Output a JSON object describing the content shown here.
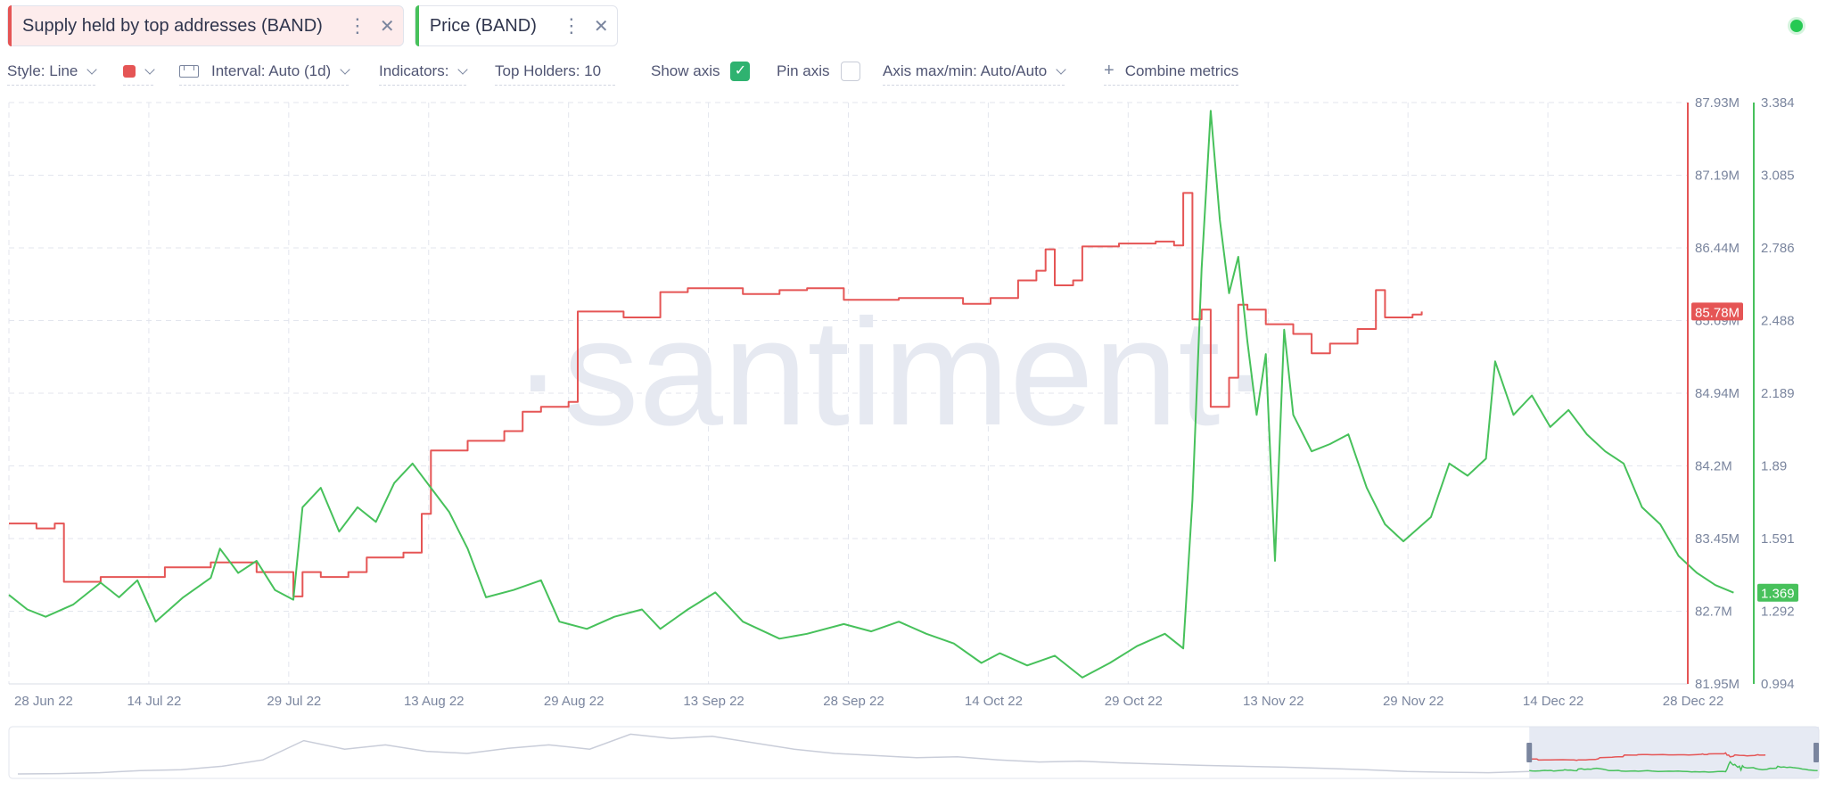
{
  "tabs": [
    {
      "label": "Supply held by top addresses (BAND)",
      "color": "#e55555"
    },
    {
      "label": "Price (BAND)",
      "color": "#47c15b"
    }
  ],
  "toolbar": {
    "style_label": "Style: Line",
    "color_swatch": "#e55555",
    "interval_label": "Interval: Auto (1d)",
    "indicators_label": "Indicators:",
    "top_holders_label": "Top Holders: 10",
    "show_axis_label": "Show axis",
    "show_axis_checked": true,
    "pin_axis_label": "Pin axis",
    "pin_axis_checked": false,
    "axis_minmax_label": "Axis max/min: Auto/Auto",
    "combine_label": "Combine metrics"
  },
  "status": {
    "color": "#26c953",
    "icon": "status-online-dot-icon"
  },
  "watermark": "·santiment·",
  "chart_data": {
    "type": "line",
    "x_ticks": [
      "28 Jun 22",
      "14 Jul 22",
      "29 Jul 22",
      "13 Aug 22",
      "29 Aug 22",
      "13 Sep 22",
      "28 Sep 22",
      "14 Oct 22",
      "29 Oct 22",
      "13 Nov 22",
      "29 Nov 22",
      "14 Dec 22",
      "28 Dec 22"
    ],
    "x_range": [
      "2022-06-28",
      "2022-12-28"
    ],
    "grid": true,
    "series": [
      {
        "name": "Supply held by top addresses (BAND)",
        "color": "#e55555",
        "axis": "left",
        "unit": "M",
        "ylim": [
          81.95,
          87.93
        ],
        "y_ticks": [
          "87.93M",
          "87.19M",
          "86.44M",
          "85.69M",
          "84.94M",
          "84.2M",
          "83.45M",
          "82.7M",
          "81.95M"
        ],
        "last_value_label": "85.78M",
        "points": [
          [
            "2022-06-28",
            83.6
          ],
          [
            "2022-07-01",
            83.55
          ],
          [
            "2022-07-03",
            83.6
          ],
          [
            "2022-07-04",
            83.0
          ],
          [
            "2022-07-08",
            83.05
          ],
          [
            "2022-07-12",
            83.05
          ],
          [
            "2022-07-15",
            83.15
          ],
          [
            "2022-07-20",
            83.2
          ],
          [
            "2022-07-25",
            83.1
          ],
          [
            "2022-07-27",
            83.1
          ],
          [
            "2022-07-29",
            82.85
          ],
          [
            "2022-07-30",
            83.1
          ],
          [
            "2022-08-01",
            83.05
          ],
          [
            "2022-08-04",
            83.1
          ],
          [
            "2022-08-06",
            83.25
          ],
          [
            "2022-08-10",
            83.3
          ],
          [
            "2022-08-12",
            83.7
          ],
          [
            "2022-08-13",
            84.35
          ],
          [
            "2022-08-17",
            84.45
          ],
          [
            "2022-08-21",
            84.55
          ],
          [
            "2022-08-23",
            84.75
          ],
          [
            "2022-08-25",
            84.8
          ],
          [
            "2022-08-28",
            84.85
          ],
          [
            "2022-08-29",
            85.78
          ],
          [
            "2022-09-03",
            85.72
          ],
          [
            "2022-09-06",
            85.72
          ],
          [
            "2022-09-07",
            85.98
          ],
          [
            "2022-09-10",
            86.02
          ],
          [
            "2022-09-13",
            86.02
          ],
          [
            "2022-09-16",
            85.96
          ],
          [
            "2022-09-20",
            86.0
          ],
          [
            "2022-09-23",
            86.02
          ],
          [
            "2022-09-27",
            85.9
          ],
          [
            "2022-09-30",
            85.9
          ],
          [
            "2022-10-03",
            85.92
          ],
          [
            "2022-10-07",
            85.92
          ],
          [
            "2022-10-10",
            85.86
          ],
          [
            "2022-10-13",
            85.92
          ],
          [
            "2022-10-16",
            86.1
          ],
          [
            "2022-10-18",
            86.2
          ],
          [
            "2022-10-19",
            86.42
          ],
          [
            "2022-10-20",
            86.05
          ],
          [
            "2022-10-22",
            86.1
          ],
          [
            "2022-10-23",
            86.45
          ],
          [
            "2022-10-27",
            86.48
          ],
          [
            "2022-10-31",
            86.5
          ],
          [
            "2022-11-02",
            86.46
          ],
          [
            "2022-11-03",
            87.0
          ],
          [
            "2022-11-04",
            85.7
          ],
          [
            "2022-11-05",
            85.8
          ],
          [
            "2022-11-06",
            84.8
          ],
          [
            "2022-11-08",
            85.1
          ],
          [
            "2022-11-09",
            85.85
          ],
          [
            "2022-11-10",
            85.8
          ],
          [
            "2022-11-12",
            85.65
          ],
          [
            "2022-11-15",
            85.55
          ],
          [
            "2022-11-17",
            85.35
          ],
          [
            "2022-11-19",
            85.45
          ],
          [
            "2022-11-22",
            85.6
          ],
          [
            "2022-11-24",
            86.0
          ],
          [
            "2022-11-25",
            85.72
          ],
          [
            "2022-11-28",
            85.75
          ],
          [
            "2022-11-29",
            85.78
          ]
        ]
      },
      {
        "name": "Price (BAND)",
        "color": "#47c15b",
        "axis": "right",
        "unit": "USD",
        "ylim": [
          0.994,
          3.384
        ],
        "y_ticks": [
          "3.384",
          "3.085",
          "2.786",
          "2.488",
          "2.189",
          "1.89",
          "1.591",
          "1.292",
          "0.994"
        ],
        "last_value_label": "1.369",
        "points": [
          [
            "2022-06-28",
            1.36
          ],
          [
            "2022-06-30",
            1.3
          ],
          [
            "2022-07-02",
            1.27
          ],
          [
            "2022-07-05",
            1.32
          ],
          [
            "2022-07-08",
            1.41
          ],
          [
            "2022-07-10",
            1.35
          ],
          [
            "2022-07-12",
            1.42
          ],
          [
            "2022-07-14",
            1.25
          ],
          [
            "2022-07-17",
            1.35
          ],
          [
            "2022-07-20",
            1.43
          ],
          [
            "2022-07-21",
            1.55
          ],
          [
            "2022-07-23",
            1.45
          ],
          [
            "2022-07-25",
            1.5
          ],
          [
            "2022-07-27",
            1.38
          ],
          [
            "2022-07-29",
            1.34
          ],
          [
            "2022-07-30",
            1.72
          ],
          [
            "2022-08-01",
            1.8
          ],
          [
            "2022-08-03",
            1.62
          ],
          [
            "2022-08-05",
            1.72
          ],
          [
            "2022-08-07",
            1.66
          ],
          [
            "2022-08-09",
            1.82
          ],
          [
            "2022-08-11",
            1.9
          ],
          [
            "2022-08-13",
            1.8
          ],
          [
            "2022-08-15",
            1.7
          ],
          [
            "2022-08-17",
            1.55
          ],
          [
            "2022-08-19",
            1.35
          ],
          [
            "2022-08-22",
            1.38
          ],
          [
            "2022-08-25",
            1.42
          ],
          [
            "2022-08-27",
            1.25
          ],
          [
            "2022-08-30",
            1.22
          ],
          [
            "2022-09-02",
            1.27
          ],
          [
            "2022-09-05",
            1.3
          ],
          [
            "2022-09-07",
            1.22
          ],
          [
            "2022-09-10",
            1.3
          ],
          [
            "2022-09-13",
            1.37
          ],
          [
            "2022-09-16",
            1.25
          ],
          [
            "2022-09-20",
            1.18
          ],
          [
            "2022-09-23",
            1.2
          ],
          [
            "2022-09-27",
            1.24
          ],
          [
            "2022-09-30",
            1.21
          ],
          [
            "2022-10-03",
            1.25
          ],
          [
            "2022-10-06",
            1.2
          ],
          [
            "2022-10-09",
            1.16
          ],
          [
            "2022-10-12",
            1.08
          ],
          [
            "2022-10-14",
            1.12
          ],
          [
            "2022-10-17",
            1.07
          ],
          [
            "2022-10-20",
            1.11
          ],
          [
            "2022-10-23",
            1.02
          ],
          [
            "2022-10-26",
            1.08
          ],
          [
            "2022-10-29",
            1.15
          ],
          [
            "2022-11-01",
            1.2
          ],
          [
            "2022-11-03",
            1.14
          ],
          [
            "2022-11-04",
            1.75
          ],
          [
            "2022-11-05",
            2.7
          ],
          [
            "2022-11-06",
            3.35
          ],
          [
            "2022-11-07",
            2.9
          ],
          [
            "2022-11-08",
            2.6
          ],
          [
            "2022-11-09",
            2.75
          ],
          [
            "2022-11-10",
            2.4
          ],
          [
            "2022-11-11",
            2.1
          ],
          [
            "2022-11-12",
            2.35
          ],
          [
            "2022-11-13",
            1.5
          ],
          [
            "2022-11-14",
            2.45
          ],
          [
            "2022-11-15",
            2.1
          ],
          [
            "2022-11-17",
            1.95
          ],
          [
            "2022-11-19",
            1.98
          ],
          [
            "2022-11-21",
            2.02
          ],
          [
            "2022-11-23",
            1.8
          ],
          [
            "2022-11-25",
            1.65
          ],
          [
            "2022-11-27",
            1.58
          ],
          [
            "2022-11-30",
            1.68
          ],
          [
            "2022-12-02",
            1.9
          ],
          [
            "2022-12-04",
            1.85
          ],
          [
            "2022-12-06",
            1.92
          ],
          [
            "2022-12-07",
            2.32
          ],
          [
            "2022-12-09",
            2.1
          ],
          [
            "2022-12-11",
            2.18
          ],
          [
            "2022-12-13",
            2.05
          ],
          [
            "2022-12-15",
            2.12
          ],
          [
            "2022-12-17",
            2.02
          ],
          [
            "2022-12-19",
            1.95
          ],
          [
            "2022-12-21",
            1.9
          ],
          [
            "2022-12-23",
            1.72
          ],
          [
            "2022-12-25",
            1.65
          ],
          [
            "2022-12-27",
            1.52
          ],
          [
            "2022-12-29",
            1.45
          ],
          [
            "2022-12-31",
            1.4
          ],
          [
            "2023-01-02",
            1.369
          ]
        ]
      }
    ],
    "navigator_selection": [
      0.84,
      1.0
    ]
  }
}
